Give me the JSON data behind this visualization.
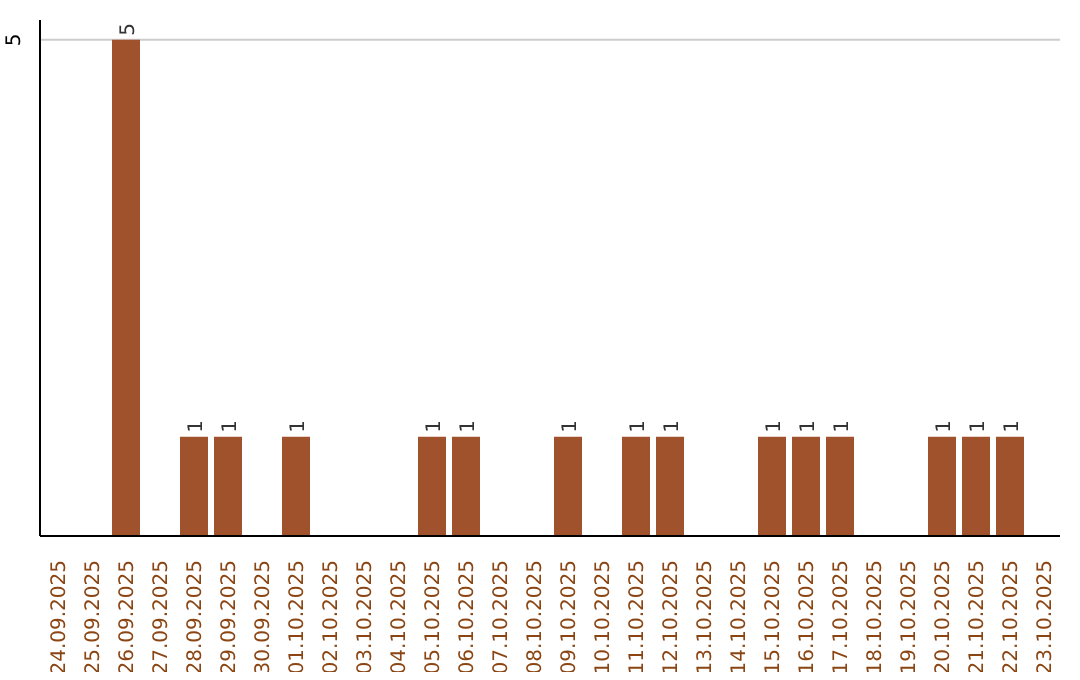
{
  "chart_data": {
    "type": "bar",
    "categories": [
      "24.09.2025",
      "25.09.2025",
      "26.09.2025",
      "27.09.2025",
      "28.09.2025",
      "29.09.2025",
      "30.09.2025",
      "01.10.2025",
      "02.10.2025",
      "03.10.2025",
      "04.10.2025",
      "05.10.2025",
      "06.10.2025",
      "07.10.2025",
      "08.10.2025",
      "09.10.2025",
      "10.10.2025",
      "11.10.2025",
      "12.10.2025",
      "13.10.2025",
      "14.10.2025",
      "15.10.2025",
      "16.10.2025",
      "17.10.2025",
      "18.10.2025",
      "19.10.2025",
      "20.10.2025",
      "21.10.2025",
      "22.10.2025",
      "23.10.2025"
    ],
    "values": [
      0,
      0,
      5,
      0,
      1,
      1,
      0,
      1,
      0,
      0,
      0,
      1,
      1,
      0,
      0,
      1,
      0,
      1,
      1,
      0,
      0,
      1,
      1,
      1,
      0,
      0,
      1,
      1,
      1,
      0
    ],
    "value_labels": [
      null,
      null,
      "5",
      null,
      "1",
      "1",
      null,
      "1",
      null,
      null,
      null,
      "1",
      "1",
      null,
      null,
      "1",
      null,
      "1",
      "1",
      null,
      null,
      "1",
      "1",
      "1",
      null,
      null,
      "1",
      "1",
      "1",
      null
    ],
    "color": "#a0522d",
    "ylim": [
      0,
      5.2
    ],
    "yticks": [
      5
    ],
    "grid": "y"
  }
}
